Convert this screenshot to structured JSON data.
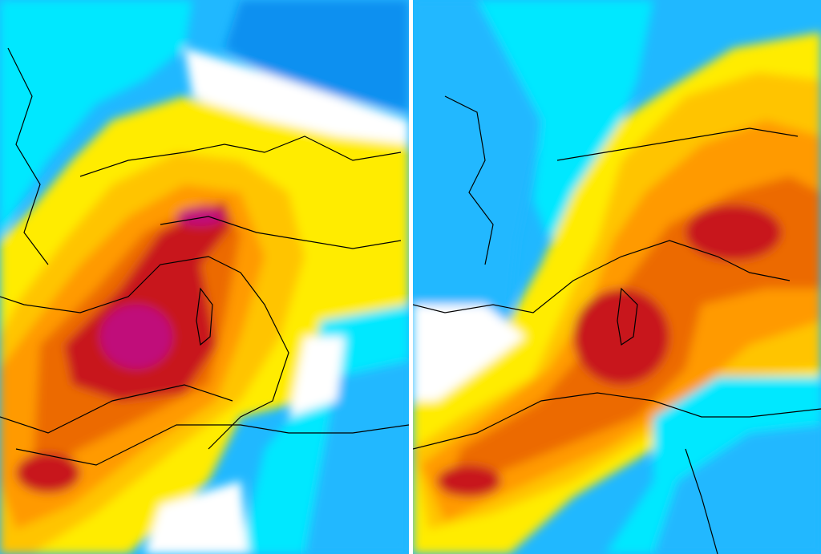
{
  "maps": {
    "panel_count": 2,
    "color_scale": [
      "#ffffff",
      "#00e8ff",
      "#20b8ff",
      "#0a90f0",
      "#ffec00",
      "#ffc400",
      "#ff9a00",
      "#ec6a00",
      "#c8141e",
      "#c0107a"
    ]
  }
}
